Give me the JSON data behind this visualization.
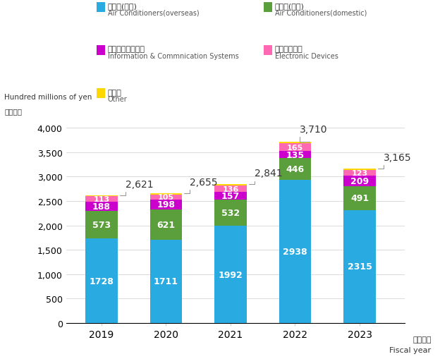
{
  "years": [
    "2019",
    "2020",
    "2021",
    "2022",
    "2023"
  ],
  "overseas_ac": [
    1728,
    1711,
    1992,
    2938,
    2315
  ],
  "domestic_ac": [
    573,
    621,
    532,
    446,
    491
  ],
  "info_comm": [
    188,
    198,
    157,
    135,
    209
  ],
  "electronic": [
    113,
    105,
    136,
    165,
    123
  ],
  "other": [
    19,
    20,
    24,
    26,
    27
  ],
  "totals": [
    2621,
    2655,
    2841,
    3710,
    3165
  ],
  "colors": {
    "overseas_ac": "#29ABE2",
    "domestic_ac": "#5B9E3C",
    "info_comm": "#CC00CC",
    "electronic": "#FF69B4",
    "other": "#FFD700"
  },
  "legend": {
    "overseas_jp": "空調機(海外)",
    "overseas_en": "Air Conditioners(overseas)",
    "domestic_jp": "空調機(国内)",
    "domestic_en": "Air Conditioners(domestic)",
    "info_jp": "情報通信システム",
    "info_en": "Information & Commnication Systems",
    "elec_jp": "電子デバイス",
    "elec_en": "Electronic Devices",
    "other_jp": "その他",
    "other_en": "Other"
  },
  "ylabel_line1": "Hundred millions of yen",
  "ylabel_line2": "（億円）",
  "xlabel_jp": "（年度）",
  "xlabel_en": "Fiscal year",
  "ylim": [
    0,
    4200
  ],
  "yticks": [
    0,
    500,
    1000,
    1500,
    2000,
    2500,
    3000,
    3500,
    4000
  ],
  "bar_width": 0.5,
  "background_color": "#FFFFFF"
}
